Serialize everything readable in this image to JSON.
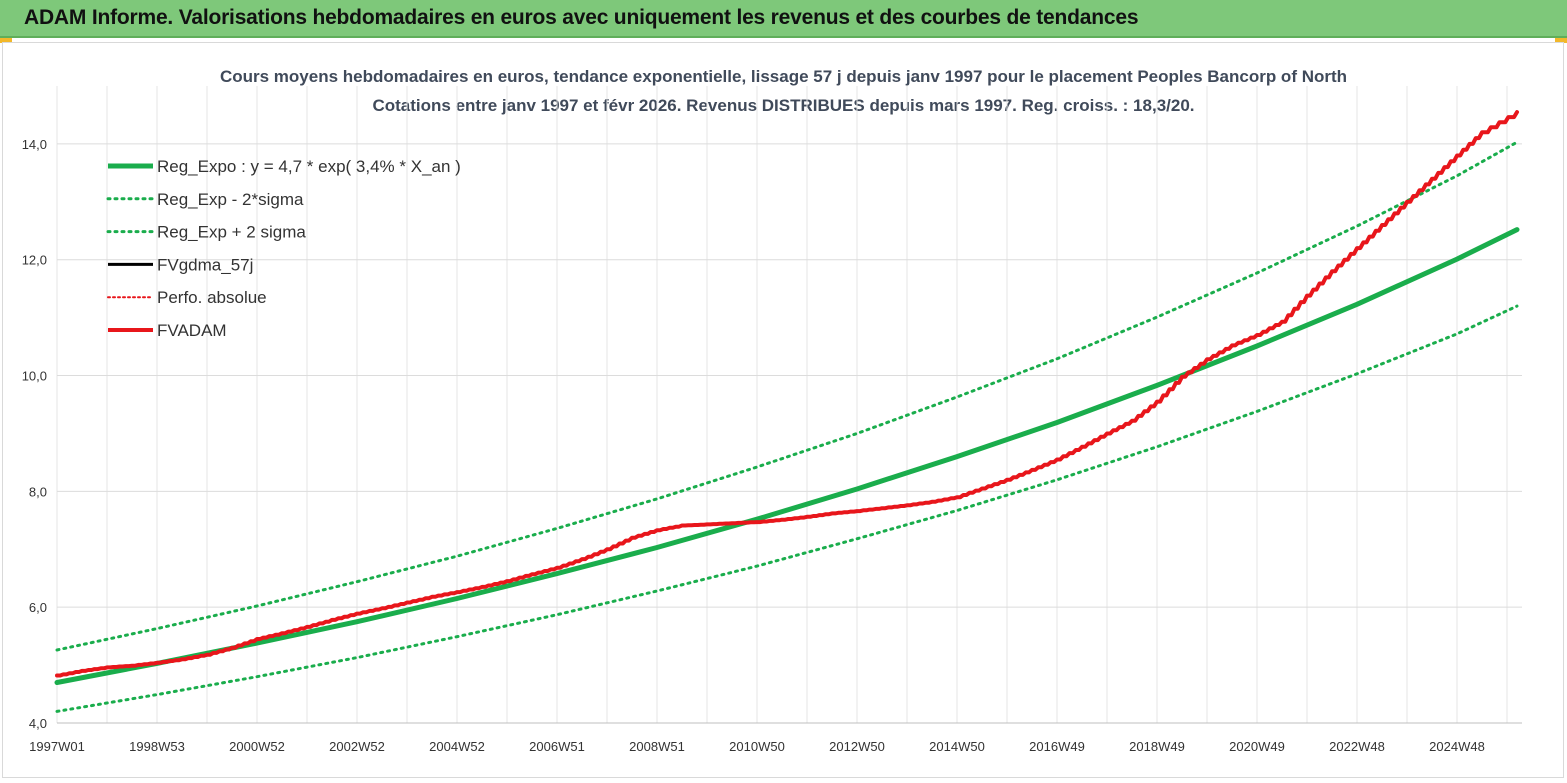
{
  "header": {
    "title": "ADAM Informe. Valorisations hebdomadaires en euros avec uniquement les revenus et des courbes de tendances"
  },
  "colors": {
    "header_bg": "#7ec87a",
    "reg_expo": "#1aad4c",
    "fvadam": "#e8161b",
    "fvgdma": "#000000",
    "perfo": "#e8161b"
  },
  "chart_data": {
    "type": "line",
    "title_line1": "Cours moyens hebdomadaires en euros, tendance exponentielle, lissage 57 j depuis janv 1997 pour le placement Peoples Bancorp of North",
    "title_line2": "Cotations entre janv 1997 et févr 2026. Revenus DISTRIBUES depuis mars 1997. Reg. croiss. : 18,3/20.",
    "x_tick_labels": [
      "1997W01",
      "1998W53",
      "2000W52",
      "2002W52",
      "2004W52",
      "2006W51",
      "2008W51",
      "2010W50",
      "2012W50",
      "2014W50",
      "2016W49",
      "2018W49",
      "2020W49",
      "2022W48",
      "2024W48"
    ],
    "x_tick_years": [
      1997.0,
      1999.0,
      2001.0,
      2003.0,
      2005.0,
      2007.0,
      2009.0,
      2011.0,
      2013.0,
      2015.0,
      2017.0,
      2019.0,
      2021.0,
      2023.0,
      2025.0
    ],
    "xlim": [
      1997.0,
      2026.3
    ],
    "ylim": [
      4.0,
      15.0
    ],
    "y_ticks": [
      4.0,
      6.0,
      8.0,
      10.0,
      12.0,
      14.0
    ],
    "y_tick_labels": [
      "4,0",
      "6,0",
      "8,0",
      "10,0",
      "12,0",
      "14,0"
    ],
    "grid": true,
    "legend_position": "top-left",
    "legend": [
      {
        "key": "reg_expo",
        "label": "Reg_Expo : y = 4,7 * exp( 3,4% *  X_an )",
        "style": "solid",
        "color": "#1aad4c",
        "width": 5
      },
      {
        "key": "reg_minus",
        "label": "Reg_Exp - 2*sigma",
        "style": "dotted",
        "color": "#1aad4c",
        "width": 3
      },
      {
        "key": "reg_plus",
        "label": "Reg_Exp + 2 sigma",
        "style": "dotted",
        "color": "#1aad4c",
        "width": 3
      },
      {
        "key": "fvgdma",
        "label": "FVgdma_57j",
        "style": "solid",
        "color": "#000000",
        "width": 3
      },
      {
        "key": "perfo",
        "label": "Perfo. absolue",
        "style": "dotted",
        "color": "#e8161b",
        "width": 2
      },
      {
        "key": "fvadam",
        "label": "FVADAM",
        "style": "solid",
        "color": "#e8161b",
        "width": 4
      }
    ],
    "regression": {
      "a": 4.7,
      "b": 0.034,
      "x0": 1997.0
    },
    "series": [
      {
        "name": "Reg_Expo : y = 4,7 * exp( 3,4% *  X_an )",
        "x": [
          1997.0,
          1999.0,
          2001.0,
          2003.0,
          2005.0,
          2007.0,
          2009.0,
          2011.0,
          2013.0,
          2015.0,
          2017.0,
          2019.0,
          2021.0,
          2023.0,
          2025.0,
          2026.2
        ],
        "values": [
          4.7,
          5.03,
          5.38,
          5.75,
          6.15,
          6.58,
          7.03,
          7.52,
          8.04,
          8.6,
          9.19,
          9.83,
          10.51,
          11.23,
          12.01,
          12.52
        ]
      },
      {
        "name": "Reg_Exp - 2*sigma",
        "x": [
          1997.0,
          1999.0,
          2001.0,
          2003.0,
          2005.0,
          2007.0,
          2009.0,
          2011.0,
          2013.0,
          2015.0,
          2017.0,
          2019.0,
          2021.0,
          2023.0,
          2025.0,
          2026.2
        ],
        "values": [
          4.2,
          4.49,
          4.8,
          5.13,
          5.49,
          5.87,
          6.28,
          6.71,
          7.18,
          7.67,
          8.2,
          8.77,
          9.38,
          10.03,
          10.72,
          11.2
        ]
      },
      {
        "name": "Reg_Exp + 2 sigma",
        "x": [
          1997.0,
          1999.0,
          2001.0,
          2003.0,
          2005.0,
          2007.0,
          2009.0,
          2011.0,
          2013.0,
          2015.0,
          2017.0,
          2019.0,
          2021.0,
          2023.0,
          2025.0,
          2026.2
        ],
        "values": [
          5.26,
          5.63,
          6.02,
          6.44,
          6.88,
          7.36,
          7.87,
          8.42,
          9.0,
          9.63,
          10.29,
          11.01,
          11.77,
          12.58,
          13.45,
          14.03
        ]
      },
      {
        "name": "FVADAM",
        "x": [
          1997.0,
          1997.5,
          1998.0,
          1998.5,
          1999.0,
          1999.5,
          2000.0,
          2000.5,
          2001.0,
          2001.5,
          2002.0,
          2002.5,
          2003.0,
          2003.5,
          2004.0,
          2004.5,
          2005.0,
          2005.5,
          2006.0,
          2006.5,
          2007.0,
          2007.5,
          2008.0,
          2008.5,
          2009.0,
          2009.5,
          2010.0,
          2010.5,
          2011.0,
          2011.5,
          2012.0,
          2012.5,
          2013.0,
          2013.5,
          2014.0,
          2014.5,
          2015.0,
          2015.5,
          2016.0,
          2016.5,
          2017.0,
          2017.5,
          2018.0,
          2018.5,
          2019.0,
          2019.5,
          2020.0,
          2020.5,
          2021.0,
          2021.5,
          2022.0,
          2022.5,
          2023.0,
          2023.5,
          2024.0,
          2024.5,
          2025.0,
          2025.5,
          2026.2
        ],
        "values": [
          4.82,
          4.9,
          4.96,
          4.99,
          5.04,
          5.1,
          5.18,
          5.3,
          5.45,
          5.55,
          5.66,
          5.78,
          5.89,
          5.98,
          6.08,
          6.18,
          6.26,
          6.35,
          6.45,
          6.57,
          6.68,
          6.83,
          7.0,
          7.2,
          7.33,
          7.41,
          7.43,
          7.45,
          7.47,
          7.51,
          7.56,
          7.62,
          7.66,
          7.71,
          7.76,
          7.82,
          7.9,
          8.05,
          8.2,
          8.37,
          8.55,
          8.77,
          9.0,
          9.22,
          9.55,
          9.98,
          10.28,
          10.52,
          10.7,
          10.93,
          11.38,
          11.8,
          12.2,
          12.6,
          13.0,
          13.4,
          13.8,
          14.2,
          14.55
        ]
      }
    ]
  }
}
